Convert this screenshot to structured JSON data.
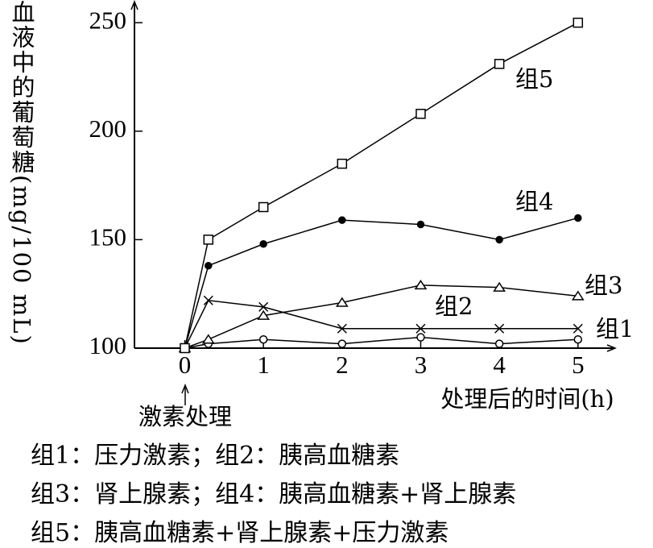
{
  "chart_data": {
    "type": "line",
    "y_label": "血液中的葡萄糖(mg/100 mL)",
    "x_label": "处理后的时间(h)",
    "annotation": "激素处理",
    "notes": [
      "组1：压力激素；组2：胰高血糖素",
      "组3：肾上腺素；组4：胰高血糖素+肾上腺素",
      "组5：胰高血糖素+肾上腺素+压力激素"
    ],
    "x": [
      0,
      0.3,
      1,
      2,
      3,
      4,
      5
    ],
    "xlim": [
      -0.64,
      5.35
    ],
    "xticks": [
      0,
      1,
      2,
      3,
      4,
      5
    ],
    "ylim": [
      100,
      256
    ],
    "yticks": [
      100,
      150,
      200,
      250
    ],
    "series": [
      {
        "name": "组1",
        "color": "#000000",
        "marker": "x",
        "values": [
          100,
          122,
          119,
          109,
          109,
          109,
          109
        ]
      },
      {
        "name": "组2",
        "color": "#000000",
        "marker": "circle-open",
        "values": [
          100,
          102,
          104,
          102,
          105,
          102,
          104
        ]
      },
      {
        "name": "组3",
        "color": "#000000",
        "marker": "triangle",
        "values": [
          100,
          104,
          115,
          121,
          129,
          128,
          124
        ]
      },
      {
        "name": "组4",
        "color": "#000000",
        "marker": "circle-filled",
        "values": [
          100,
          138,
          148,
          159,
          157,
          150,
          160
        ]
      },
      {
        "name": "组5",
        "color": "#000000",
        "marker": "square",
        "values": [
          100,
          150,
          165,
          185,
          208,
          231,
          250
        ]
      }
    ]
  }
}
